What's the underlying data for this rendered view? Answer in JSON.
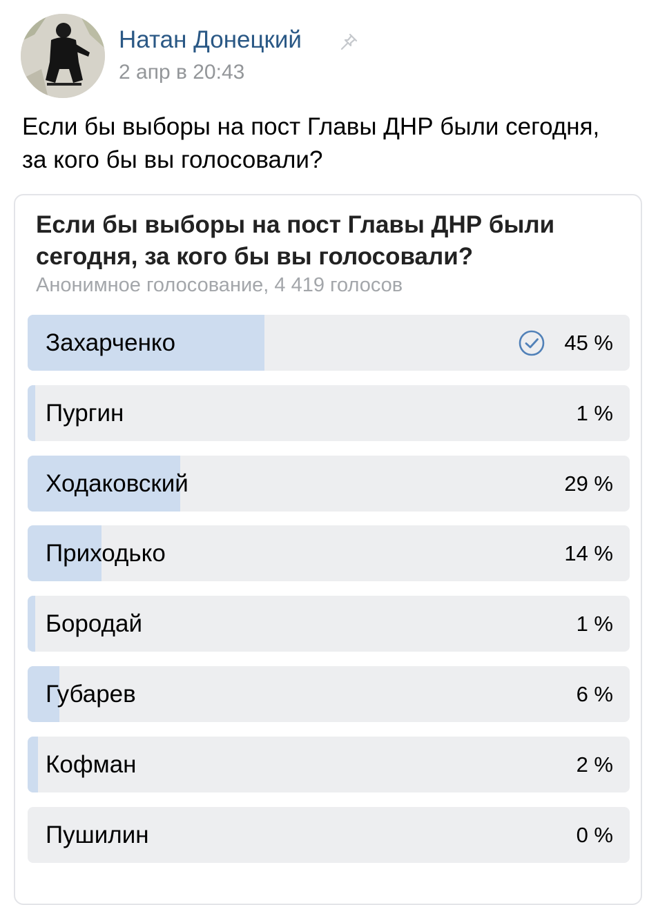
{
  "post": {
    "author": "Натан Донецкий",
    "date": "2 апр в 20:43",
    "text": "Если бы выборы на пост Главы ДНР были сегодня, за кого бы вы голосовали?"
  },
  "poll": {
    "question": "Если бы выборы на пост Главы ДНР были сегодня, за кого бы вы голосовали?",
    "meta": "Анонимное голосование, 4 419 голосов",
    "options": [
      {
        "label": "Захарченко",
        "percent": 45,
        "percent_text": "45 %",
        "voted": true
      },
      {
        "label": "Пургин",
        "percent": 1,
        "percent_text": "1 %",
        "voted": false
      },
      {
        "label": "Ходаковский",
        "percent": 29,
        "percent_text": "29 %",
        "voted": false
      },
      {
        "label": "Приходько",
        "percent": 14,
        "percent_text": "14 %",
        "voted": false
      },
      {
        "label": "Бородай",
        "percent": 1,
        "percent_text": "1 %",
        "voted": false
      },
      {
        "label": "Губарев",
        "percent": 6,
        "percent_text": "6 %",
        "voted": false
      },
      {
        "label": "Кофман",
        "percent": 2,
        "percent_text": "2 %",
        "voted": false
      },
      {
        "label": "Пушилин",
        "percent": 0,
        "percent_text": "0 %",
        "voted": false
      }
    ]
  },
  "colors": {
    "author": "#2a5885",
    "bar_fill": "#cddcef",
    "bar_track": "#edeef0",
    "check": "#5181b8"
  },
  "icons": {
    "pin": "pin-icon",
    "voted": "check-circle-icon"
  }
}
